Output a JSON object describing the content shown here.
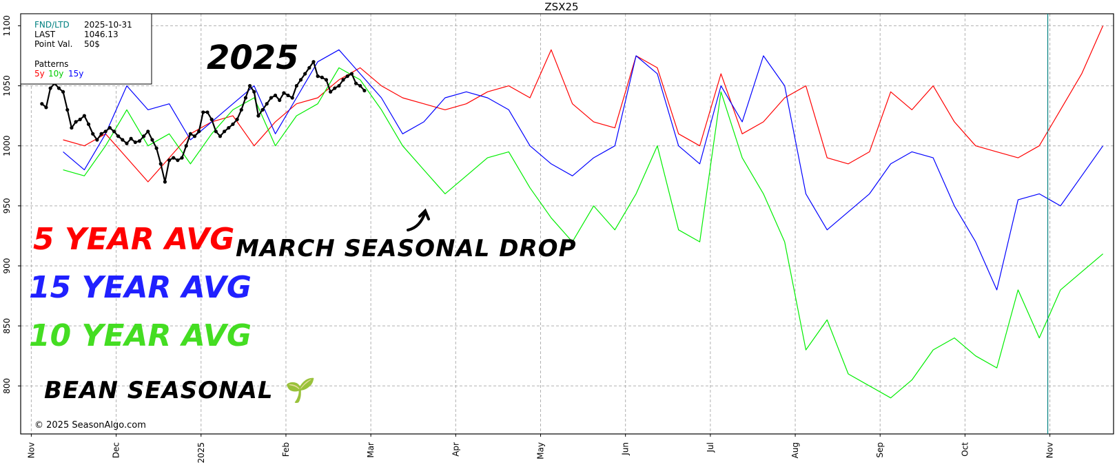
{
  "chart_data": {
    "type": "line",
    "title": "ZSX25",
    "ylim": [
      760,
      1110
    ],
    "y_ticks": [
      800,
      850,
      900,
      950,
      1000,
      1050,
      1100
    ],
    "x_tick_labels": [
      "Nov",
      "Dec",
      "2025",
      "Feb",
      "Mar",
      "Apr",
      "May",
      "Jun",
      "Jul",
      "Aug",
      "Sep",
      "Oct",
      "Nov"
    ],
    "x_tick_positions": [
      0,
      4,
      8,
      12,
      16,
      20,
      24,
      28,
      32,
      36,
      40,
      44,
      48
    ],
    "xlim": [
      -0.5,
      51
    ],
    "vertical_marker_x": 47.9,
    "grid": true,
    "info_box": {
      "rows": [
        {
          "label": "FND/LTD",
          "value": "2025-10-31"
        },
        {
          "label": "LAST",
          "value": "1046.13"
        },
        {
          "label": "Point Val.",
          "value": "50$"
        }
      ],
      "patterns_label": "Patterns",
      "patterns": [
        {
          "label": "5y",
          "color": "#ff0000"
        },
        {
          "label": "10y",
          "color": "#00ee00"
        },
        {
          "label": "15y",
          "color": "#0000ff"
        }
      ]
    },
    "series": [
      {
        "name": "5y",
        "color": "#ff0000",
        "x": [
          1.5,
          2.5,
          3.5,
          4.5,
          5.5,
          6.5,
          7.5,
          8.5,
          9.5,
          10.5,
          11.5,
          12.5,
          13.5,
          14.5,
          15.5,
          16.5,
          17.5,
          18.5,
          19.5,
          20.5,
          21.5,
          22.5,
          23.5,
          24.5,
          25.5,
          26.5,
          27.5,
          28.5,
          29.5,
          30.5,
          31.5,
          32.5,
          33.5,
          34.5,
          35.5,
          36.5,
          37.5,
          38.5,
          39.5,
          40.5,
          41.5,
          42.5,
          43.5,
          44.5,
          45.5,
          46.5,
          47.5,
          48.5,
          49.5,
          50.5
        ],
        "values": [
          1005,
          1000,
          1010,
          990,
          970,
          990,
          1010,
          1020,
          1025,
          1000,
          1020,
          1035,
          1040,
          1055,
          1065,
          1050,
          1040,
          1035,
          1030,
          1035,
          1045,
          1050,
          1040,
          1080,
          1035,
          1020,
          1015,
          1075,
          1065,
          1010,
          1000,
          1060,
          1010,
          1020,
          1040,
          1050,
          990,
          985,
          995,
          1045,
          1030,
          1050,
          1020,
          1000,
          995,
          990,
          1000,
          1030,
          1060,
          1100
        ]
      },
      {
        "name": "10y",
        "color": "#00ee00",
        "x": [
          1.5,
          2.5,
          3.5,
          4.5,
          5.5,
          6.5,
          7.5,
          8.5,
          9.5,
          10.5,
          11.5,
          12.5,
          13.5,
          14.5,
          15.5,
          16.5,
          17.5,
          18.5,
          19.5,
          20.5,
          21.5,
          22.5,
          23.5,
          24.5,
          25.5,
          26.5,
          27.5,
          28.5,
          29.5,
          30.5,
          31.5,
          32.5,
          33.5,
          34.5,
          35.5,
          36.5,
          37.5,
          38.5,
          39.5,
          40.5,
          41.5,
          42.5,
          43.5,
          44.5,
          45.5,
          46.5,
          47.5,
          48.5,
          49.5,
          50.5
        ],
        "values": [
          980,
          975,
          1000,
          1030,
          1000,
          1010,
          985,
          1010,
          1030,
          1040,
          1000,
          1025,
          1035,
          1065,
          1055,
          1030,
          1000,
          980,
          960,
          975,
          990,
          995,
          965,
          940,
          920,
          950,
          930,
          960,
          1000,
          930,
          920,
          1045,
          990,
          960,
          920,
          830,
          855,
          810,
          800,
          790,
          805,
          830,
          840,
          825,
          815,
          880,
          840,
          880,
          895,
          910
        ]
      },
      {
        "name": "15y",
        "color": "#0000ff",
        "x": [
          1.5,
          2.5,
          3.5,
          4.5,
          5.5,
          6.5,
          7.5,
          8.5,
          9.5,
          10.5,
          11.5,
          12.5,
          13.5,
          14.5,
          15.5,
          16.5,
          17.5,
          18.5,
          19.5,
          20.5,
          21.5,
          22.5,
          23.5,
          24.5,
          25.5,
          26.5,
          27.5,
          28.5,
          29.5,
          30.5,
          31.5,
          32.5,
          33.5,
          34.5,
          35.5,
          36.5,
          37.5,
          38.5,
          39.5,
          40.5,
          41.5,
          42.5,
          43.5,
          44.5,
          45.5,
          46.5,
          47.5,
          48.5,
          49.5,
          50.5
        ],
        "values": [
          995,
          980,
          1010,
          1050,
          1030,
          1035,
          1005,
          1020,
          1035,
          1050,
          1010,
          1040,
          1070,
          1080,
          1060,
          1040,
          1010,
          1020,
          1040,
          1045,
          1040,
          1030,
          1000,
          985,
          975,
          990,
          1000,
          1075,
          1060,
          1000,
          985,
          1050,
          1020,
          1075,
          1050,
          960,
          930,
          945,
          960,
          985,
          995,
          990,
          950,
          920,
          880,
          955,
          960,
          950,
          975,
          1000
        ]
      },
      {
        "name": "2025",
        "color": "#000000",
        "x": [
          0.5,
          0.7,
          0.9,
          1.1,
          1.3,
          1.5,
          1.7,
          1.9,
          2.1,
          2.3,
          2.5,
          2.7,
          2.9,
          3.1,
          3.3,
          3.5,
          3.7,
          3.9,
          4.1,
          4.3,
          4.5,
          4.7,
          4.9,
          5.1,
          5.3,
          5.5,
          5.7,
          5.9,
          6.1,
          6.3,
          6.5,
          6.7,
          6.9,
          7.1,
          7.3,
          7.5,
          7.7,
          7.9,
          8.1,
          8.3,
          8.5,
          8.7,
          8.9,
          9.1,
          9.3,
          9.5,
          9.7,
          9.9,
          10.1,
          10.3,
          10.5,
          10.7,
          10.9,
          11.1,
          11.3,
          11.5,
          11.7,
          11.9,
          12.1,
          12.3,
          12.5,
          12.7,
          12.9,
          13.1,
          13.3,
          13.5,
          13.7,
          13.9,
          14.1,
          14.3,
          14.5,
          14.7,
          14.9,
          15.1,
          15.3,
          15.5,
          15.7
        ],
        "values": [
          1035,
          1032,
          1048,
          1052,
          1048,
          1045,
          1030,
          1015,
          1020,
          1022,
          1025,
          1018,
          1010,
          1005,
          1010,
          1012,
          1015,
          1012,
          1008,
          1005,
          1002,
          1006,
          1003,
          1004,
          1008,
          1012,
          1005,
          998,
          985,
          970,
          988,
          990,
          988,
          990,
          1000,
          1010,
          1008,
          1012,
          1028,
          1028,
          1022,
          1012,
          1008,
          1012,
          1015,
          1018,
          1022,
          1030,
          1040,
          1050,
          1045,
          1025,
          1030,
          1035,
          1040,
          1042,
          1038,
          1044,
          1042,
          1040,
          1050,
          1055,
          1060,
          1065,
          1070,
          1058,
          1057,
          1055,
          1045,
          1048,
          1050,
          1055,
          1058,
          1060,
          1052,
          1050,
          1046
        ]
      }
    ],
    "annotations": [
      {
        "text": "2025",
        "color": "#000000"
      },
      {
        "text": "MARCH SEASONAL DROP",
        "color": "#000000"
      },
      {
        "text": "5 YEAR AVG",
        "color": "#ff0000"
      },
      {
        "text": "15 YEAR AVG",
        "color": "#2020ff"
      },
      {
        "text": "10 YEAR AVG",
        "color": "#44dd22"
      },
      {
        "text": "BEAN SEASONAL 🌱",
        "color": "#000000"
      }
    ],
    "copyright": "© 2025 SeasonAlgo.com"
  }
}
